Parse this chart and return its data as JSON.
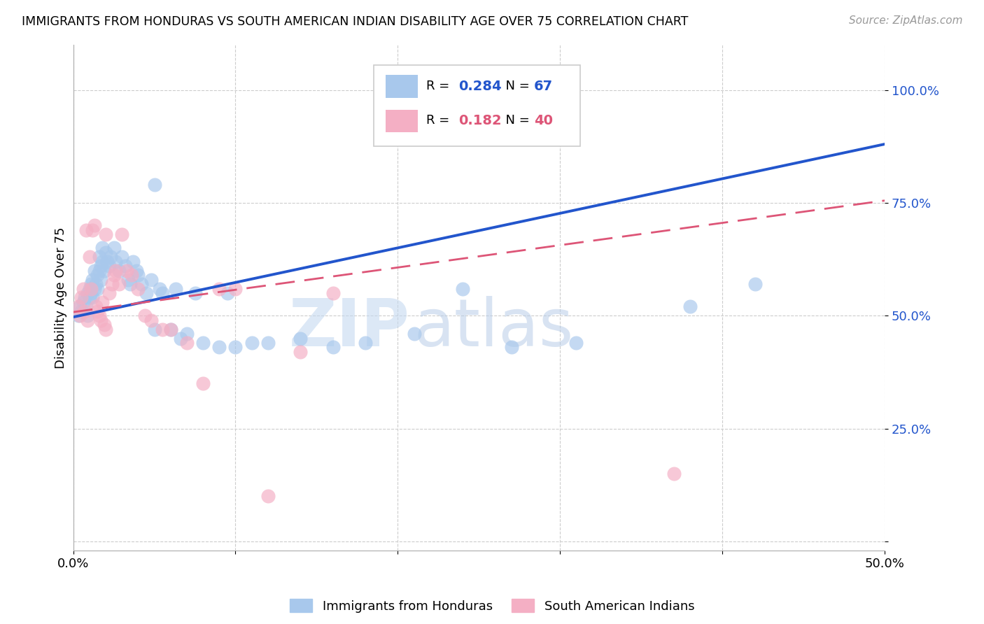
{
  "title": "IMMIGRANTS FROM HONDURAS VS SOUTH AMERICAN INDIAN DISABILITY AGE OVER 75 CORRELATION CHART",
  "source": "Source: ZipAtlas.com",
  "ylabel": "Disability Age Over 75",
  "legend_label1": "Immigrants from Honduras",
  "legend_label2": "South American Indians",
  "R1": 0.284,
  "N1": 67,
  "R2": 0.182,
  "N2": 40,
  "xlim": [
    0.0,
    0.5
  ],
  "ylim": [
    -0.02,
    1.1
  ],
  "color1": "#a8c8ec",
  "color2": "#f4afc4",
  "line_color1": "#2255cc",
  "line_color2": "#dd5577",
  "watermark_zip": "ZIP",
  "watermark_atlas": "atlas",
  "blue_x": [
    0.003,
    0.004,
    0.005,
    0.006,
    0.007,
    0.008,
    0.009,
    0.009,
    0.01,
    0.01,
    0.011,
    0.011,
    0.012,
    0.012,
    0.013,
    0.013,
    0.014,
    0.015,
    0.015,
    0.016,
    0.016,
    0.017,
    0.017,
    0.018,
    0.018,
    0.019,
    0.02,
    0.021,
    0.022,
    0.023,
    0.025,
    0.026,
    0.028,
    0.03,
    0.032,
    0.034,
    0.035,
    0.037,
    0.039,
    0.04,
    0.042,
    0.045,
    0.048,
    0.05,
    0.053,
    0.055,
    0.06,
    0.063,
    0.066,
    0.07,
    0.075,
    0.08,
    0.09,
    0.095,
    0.1,
    0.11,
    0.12,
    0.14,
    0.16,
    0.18,
    0.21,
    0.24,
    0.27,
    0.31,
    0.38,
    0.42,
    0.05
  ],
  "blue_y": [
    0.5,
    0.52,
    0.51,
    0.53,
    0.54,
    0.52,
    0.55,
    0.5,
    0.54,
    0.56,
    0.55,
    0.57,
    0.54,
    0.58,
    0.56,
    0.6,
    0.57,
    0.59,
    0.56,
    0.6,
    0.63,
    0.61,
    0.58,
    0.62,
    0.65,
    0.6,
    0.64,
    0.62,
    0.61,
    0.63,
    0.65,
    0.62,
    0.6,
    0.63,
    0.61,
    0.58,
    0.57,
    0.62,
    0.6,
    0.59,
    0.57,
    0.55,
    0.58,
    0.47,
    0.56,
    0.55,
    0.47,
    0.56,
    0.45,
    0.46,
    0.55,
    0.44,
    0.43,
    0.55,
    0.43,
    0.44,
    0.44,
    0.45,
    0.43,
    0.44,
    0.46,
    0.56,
    0.43,
    0.44,
    0.52,
    0.57,
    0.79
  ],
  "pink_x": [
    0.003,
    0.004,
    0.005,
    0.006,
    0.007,
    0.008,
    0.009,
    0.01,
    0.011,
    0.012,
    0.013,
    0.014,
    0.015,
    0.016,
    0.017,
    0.018,
    0.019,
    0.02,
    0.022,
    0.024,
    0.026,
    0.028,
    0.03,
    0.033,
    0.036,
    0.04,
    0.044,
    0.048,
    0.055,
    0.06,
    0.07,
    0.08,
    0.09,
    0.1,
    0.12,
    0.14,
    0.16,
    0.02,
    0.025,
    0.37
  ],
  "pink_y": [
    0.52,
    0.5,
    0.54,
    0.56,
    0.51,
    0.69,
    0.49,
    0.63,
    0.56,
    0.69,
    0.7,
    0.52,
    0.51,
    0.5,
    0.49,
    0.53,
    0.48,
    0.47,
    0.55,
    0.57,
    0.6,
    0.57,
    0.68,
    0.6,
    0.59,
    0.56,
    0.5,
    0.49,
    0.47,
    0.47,
    0.44,
    0.35,
    0.56,
    0.56,
    0.1,
    0.42,
    0.55,
    0.68,
    0.59,
    0.15
  ],
  "line1_x0": 0.0,
  "line1_y0": 0.497,
  "line1_x1": 0.5,
  "line1_y1": 0.88,
  "line2_x0": 0.0,
  "line2_y0": 0.508,
  "line2_x1": 0.5,
  "line2_y1": 0.755,
  "yticks": [
    0.0,
    0.25,
    0.5,
    0.75,
    1.0
  ],
  "ytick_labels": [
    "",
    "25.0%",
    "50.0%",
    "75.0%",
    "100.0%"
  ],
  "xticks": [
    0.0,
    0.1,
    0.2,
    0.3,
    0.4,
    0.5
  ],
  "xtick_labels": [
    "0.0%",
    "",
    "",
    "",
    "",
    "50.0%"
  ]
}
